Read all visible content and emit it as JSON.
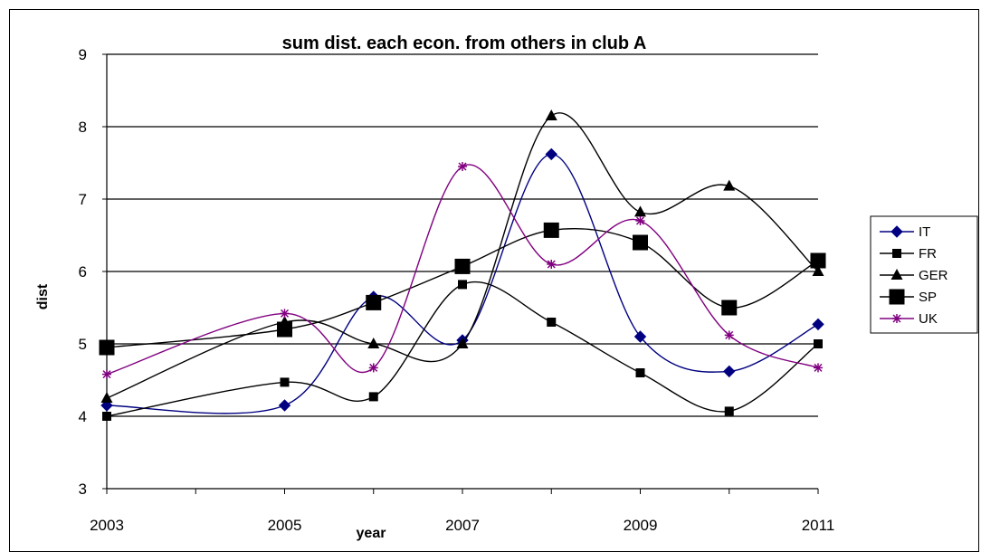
{
  "chart_data": {
    "type": "line",
    "title": "sum dist. each econ. from others in club A",
    "xlabel": "year",
    "ylabel": "dist",
    "xlim": [
      2003,
      2011
    ],
    "ylim": [
      3,
      9
    ],
    "x_ticks": [
      "2003",
      "2005",
      "2007",
      "2009",
      "2011"
    ],
    "y_ticks": [
      "3",
      "4",
      "5",
      "6",
      "7",
      "8",
      "9"
    ],
    "grid": "horizontal",
    "legend_position": "right",
    "smoothed": true,
    "series": [
      {
        "name": "IT",
        "color": "#000080",
        "marker": "diamond",
        "x": [
          2003,
          2005,
          2006,
          2007,
          2008,
          2009,
          2010,
          2011
        ],
        "values": [
          4.15,
          4.15,
          5.65,
          5.05,
          7.62,
          5.1,
          4.62,
          5.27
        ]
      },
      {
        "name": "FR",
        "color": "#000000",
        "marker": "square",
        "x": [
          2003,
          2005,
          2006,
          2007,
          2008,
          2009,
          2010,
          2011
        ],
        "values": [
          4.0,
          4.47,
          4.27,
          5.82,
          5.3,
          4.6,
          4.07,
          5.0
        ]
      },
      {
        "name": "GER",
        "color": "#000000",
        "marker": "triangle",
        "x": [
          2003,
          2005,
          2006,
          2007,
          2008,
          2009,
          2010,
          2011
        ],
        "values": [
          4.25,
          5.3,
          5.0,
          5.0,
          8.15,
          6.82,
          7.18,
          6.0
        ]
      },
      {
        "name": "SP",
        "color": "#000000",
        "marker": "big-square",
        "x": [
          2003,
          2005,
          2006,
          2007,
          2008,
          2009,
          2010,
          2011
        ],
        "values": [
          4.95,
          5.2,
          5.57,
          6.07,
          6.57,
          6.4,
          5.5,
          6.15
        ]
      },
      {
        "name": "UK",
        "color": "#800080",
        "marker": "asterisk",
        "x": [
          2003,
          2005,
          2006,
          2007,
          2008,
          2009,
          2010,
          2011
        ],
        "values": [
          4.58,
          5.42,
          4.67,
          7.45,
          6.1,
          6.7,
          5.12,
          4.67
        ]
      }
    ]
  }
}
